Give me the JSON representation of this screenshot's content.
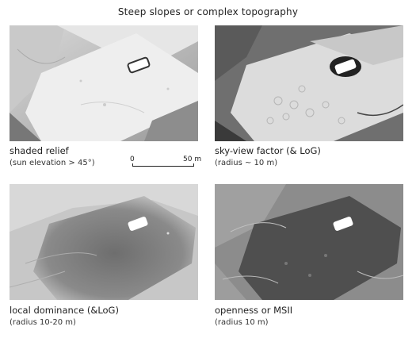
{
  "title": "Steep slopes or complex topography",
  "panels": [
    {
      "caption": "shaded relief",
      "subcaption": "(sun elevation > 45°)"
    },
    {
      "caption": "sky-view factor (& LoG)",
      "subcaption": "(radius ~ 10 m)"
    },
    {
      "caption": "local dominance (&LoG)",
      "subcaption": "(radius 10-20 m)"
    },
    {
      "caption": "openness or MSII",
      "subcaption": "(radius 10 m)"
    }
  ],
  "scale_bar": {
    "start": "0",
    "end": "50 m"
  }
}
